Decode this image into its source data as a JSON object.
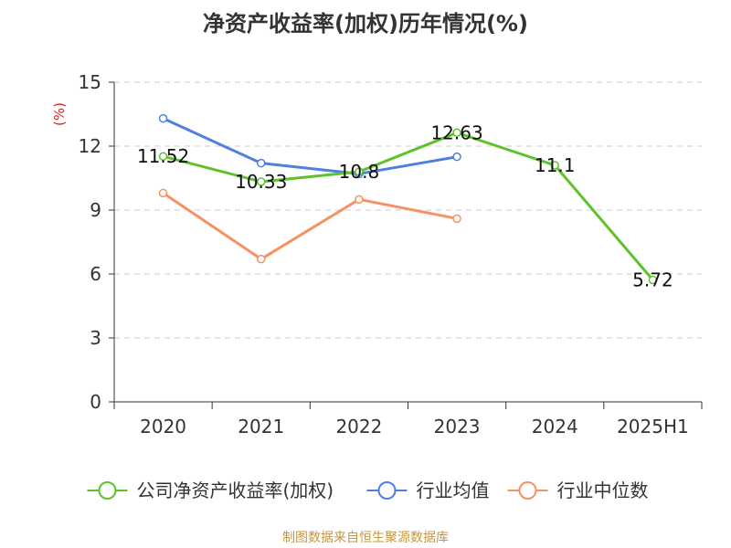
{
  "chart_data": {
    "type": "line",
    "title": "净资产收益率(加权)历年情况(%)",
    "ylabel": "(%)",
    "xlabel": "",
    "categories": [
      "2020",
      "2021",
      "2022",
      "2023",
      "2024",
      "2025H1"
    ],
    "ylim": [
      0,
      15
    ],
    "yticks": [
      0,
      3,
      6,
      9,
      12,
      15
    ],
    "grid": true,
    "legend_position": "bottom",
    "series": [
      {
        "name": "公司净资产收益率(加权)",
        "color": "#5ec22a",
        "values": [
          11.52,
          10.33,
          10.8,
          12.63,
          11.1,
          5.72
        ],
        "data_labels": [
          "11.52",
          "10.33",
          "10.8",
          "12.63",
          "11.1",
          "5.72"
        ]
      },
      {
        "name": "行业均值",
        "color": "#4f7fe0",
        "values": [
          13.3,
          11.2,
          10.7,
          11.5,
          null,
          null
        ]
      },
      {
        "name": "行业中位数",
        "color": "#f59162",
        "values": [
          9.8,
          6.7,
          9.5,
          8.6,
          null,
          null
        ]
      }
    ]
  },
  "source": "制图数据来自恒生聚源数据库"
}
